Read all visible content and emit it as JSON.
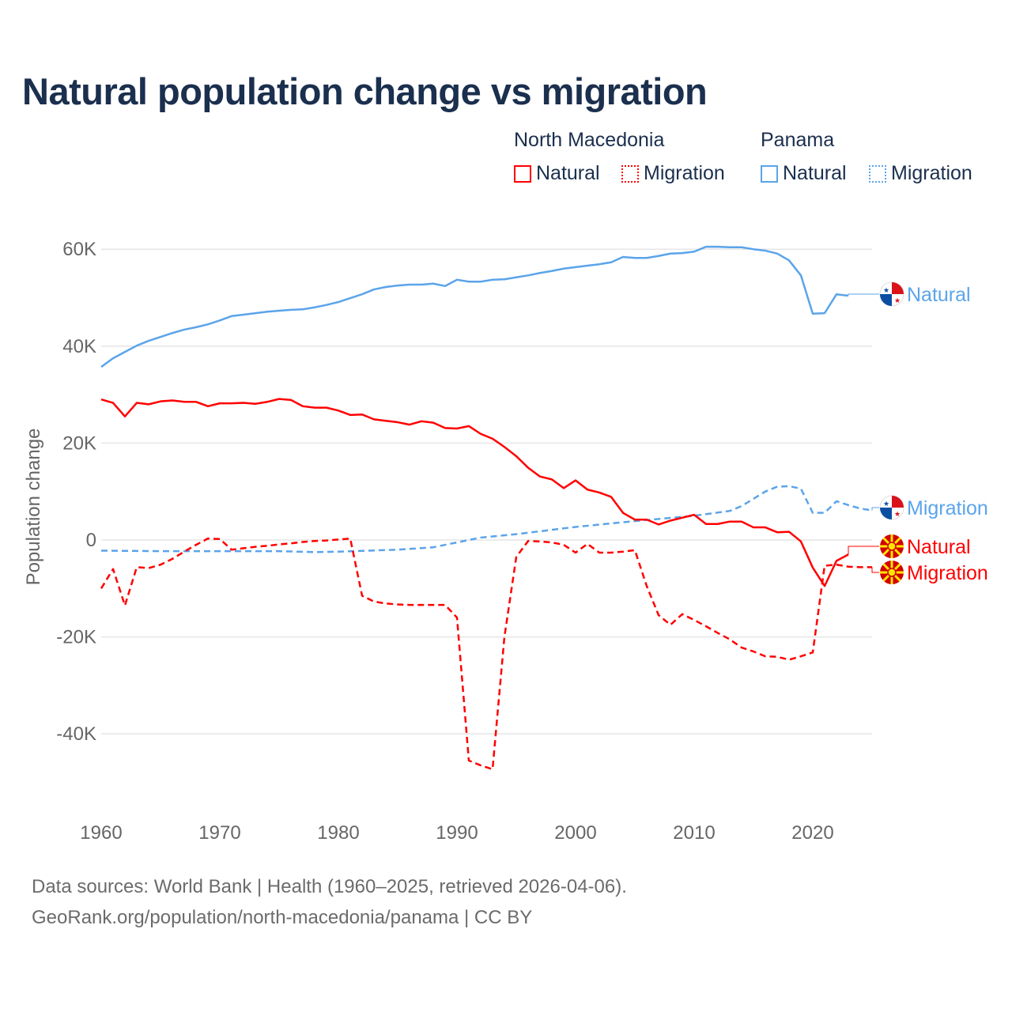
{
  "chart_data": {
    "type": "line",
    "title": "Natural population change vs migration",
    "xlabel": "",
    "ylabel": "Population change",
    "xlim": [
      1960,
      2025
    ],
    "ylim": [
      -50000,
      70000
    ],
    "x_ticks": [
      1960,
      1970,
      1980,
      1990,
      2000,
      2010,
      2020
    ],
    "x_tick_labels": [
      "1960",
      "1970",
      "1980",
      "1990",
      "2000",
      "2010",
      "2020"
    ],
    "y_ticks": [
      -40000,
      -20000,
      0,
      20000,
      40000,
      60000
    ],
    "y_tick_labels": [
      "-40K",
      "-20K",
      "0",
      "20K",
      "40K",
      "60K"
    ],
    "grid": true,
    "legend": {
      "placement": "top-right",
      "groups": [
        {
          "country": "North Macedonia",
          "items": [
            "Natural",
            "Migration"
          ]
        },
        {
          "country": "Panama",
          "items": [
            "Natural",
            "Migration"
          ]
        }
      ]
    },
    "series": [
      {
        "name": "Natural",
        "country": "Panama",
        "style": "solid",
        "color": "#5ba4ea",
        "end_label": "Natural",
        "x": [
          1960,
          1961,
          1962,
          1963,
          1964,
          1965,
          1966,
          1967,
          1968,
          1969,
          1970,
          1971,
          1972,
          1973,
          1974,
          1975,
          1976,
          1977,
          1978,
          1979,
          1980,
          1981,
          1982,
          1983,
          1984,
          1985,
          1986,
          1987,
          1988,
          1989,
          1990,
          1991,
          1992,
          1993,
          1994,
          1995,
          1996,
          1997,
          1998,
          1999,
          2000,
          2001,
          2002,
          2003,
          2004,
          2005,
          2006,
          2007,
          2008,
          2009,
          2010,
          2011,
          2012,
          2013,
          2014,
          2015,
          2016,
          2017,
          2018,
          2019,
          2020,
          2021,
          2022,
          2023
        ],
        "values": [
          35700,
          37500,
          38800,
          40100,
          41100,
          41900,
          42700,
          43400,
          43900,
          44500,
          45300,
          46200,
          46500,
          46800,
          47100,
          47300,
          47500,
          47600,
          48000,
          48500,
          49100,
          49900,
          50700,
          51700,
          52200,
          52500,
          52700,
          52700,
          52900,
          52400,
          53700,
          53300,
          53300,
          53700,
          53800,
          54200,
          54600,
          55100,
          55500,
          56000,
          56300,
          56600,
          56900,
          57300,
          58400,
          58200,
          58200,
          58600,
          59100,
          59200,
          59500,
          60500,
          60500,
          60400,
          60400,
          60000,
          59700,
          59100,
          57700,
          54600,
          46700,
          46800,
          50700,
          50400
        ]
      },
      {
        "name": "Migration",
        "country": "Panama",
        "style": "dashed",
        "color": "#5ba4ea",
        "end_label": "Migration",
        "x": [
          1960,
          1965,
          1970,
          1975,
          1978,
          1980,
          1985,
          1988,
          1990,
          1992,
          1995,
          2000,
          2005,
          2010,
          2013,
          2014,
          2015,
          2016,
          2017,
          2018,
          2019,
          2020,
          2021,
          2022,
          2023,
          2024,
          2025
        ],
        "values": [
          -2200,
          -2300,
          -2300,
          -2300,
          -2500,
          -2400,
          -2000,
          -1500,
          -500,
          500,
          1200,
          2700,
          3900,
          5000,
          6000,
          7000,
          8500,
          10000,
          11000,
          11100,
          10600,
          5600,
          5600,
          8000,
          7200,
          6500,
          6100
        ]
      },
      {
        "name": "Natural",
        "country": "North Macedonia",
        "style": "solid",
        "color": "#ff0000",
        "end_label": "Natural",
        "x": [
          1960,
          1961,
          1962,
          1963,
          1964,
          1965,
          1966,
          1967,
          1968,
          1969,
          1970,
          1971,
          1972,
          1973,
          1974,
          1975,
          1976,
          1977,
          1978,
          1979,
          1980,
          1981,
          1982,
          1983,
          1984,
          1985,
          1986,
          1987,
          1988,
          1989,
          1990,
          1991,
          1992,
          1993,
          1994,
          1995,
          1996,
          1997,
          1998,
          1999,
          2000,
          2001,
          2002,
          2003,
          2004,
          2005,
          2006,
          2007,
          2008,
          2009,
          2010,
          2011,
          2012,
          2013,
          2014,
          2015,
          2016,
          2017,
          2018,
          2019,
          2020,
          2021,
          2022,
          2023
        ],
        "values": [
          29000,
          28300,
          25500,
          28300,
          28000,
          28600,
          28800,
          28500,
          28500,
          27600,
          28200,
          28200,
          28300,
          28100,
          28500,
          29100,
          28900,
          27600,
          27300,
          27300,
          26700,
          25800,
          25900,
          24900,
          24600,
          24300,
          23800,
          24500,
          24200,
          23100,
          23000,
          23500,
          21900,
          20900,
          19200,
          17300,
          14900,
          13100,
          12500,
          10700,
          12300,
          10400,
          9800,
          8900,
          5600,
          4200,
          4200,
          3200,
          4000,
          4600,
          5200,
          3300,
          3300,
          3800,
          3800,
          2600,
          2600,
          1600,
          1700,
          -300,
          -5700,
          -9500,
          -4300,
          -3000
        ]
      },
      {
        "name": "Migration",
        "country": "North Macedonia",
        "style": "dashed",
        "color": "#ff0000",
        "end_label": "Migration",
        "x": [
          1960,
          1961,
          1962,
          1963,
          1964,
          1965,
          1966,
          1967,
          1968,
          1969,
          1970,
          1971,
          1972,
          1973,
          1974,
          1975,
          1976,
          1977,
          1978,
          1979,
          1980,
          1981,
          1982,
          1983,
          1984,
          1985,
          1986,
          1987,
          1988,
          1989,
          1990,
          1991,
          1992,
          1993,
          1994,
          1995,
          1996,
          1997,
          1998,
          1999,
          2000,
          2001,
          2002,
          2003,
          2004,
          2005,
          2006,
          2007,
          2008,
          2009,
          2010,
          2011,
          2012,
          2013,
          2014,
          2015,
          2016,
          2017,
          2018,
          2019,
          2020,
          2021,
          2022,
          2023,
          2024,
          2025
        ],
        "values": [
          -10000,
          -6000,
          -13500,
          -5600,
          -5800,
          -5100,
          -3900,
          -2400,
          -1000,
          300,
          200,
          -2000,
          -1700,
          -1400,
          -1200,
          -900,
          -700,
          -400,
          -200,
          -100,
          100,
          300,
          -11500,
          -12700,
          -13100,
          -13300,
          -13400,
          -13400,
          -13400,
          -13400,
          -16000,
          -45500,
          -46500,
          -47300,
          -20000,
          -3500,
          -200,
          -300,
          -500,
          -1000,
          -2600,
          -800,
          -2600,
          -2600,
          -2400,
          -2100,
          -9500,
          -15500,
          -17500,
          -15300,
          -16500,
          -17800,
          -19200,
          -20500,
          -22200,
          -23000,
          -24000,
          -24100,
          -24700,
          -24000,
          -23200,
          -5300,
          -5100,
          -5500,
          -5600,
          -5600
        ]
      }
    ]
  },
  "footer": {
    "line1": "Data sources: World Bank | Health (1960–2025, retrieved 2026-04-06).",
    "line2": "GeoRank.org/population/north-macedonia/panama | CC BY"
  }
}
